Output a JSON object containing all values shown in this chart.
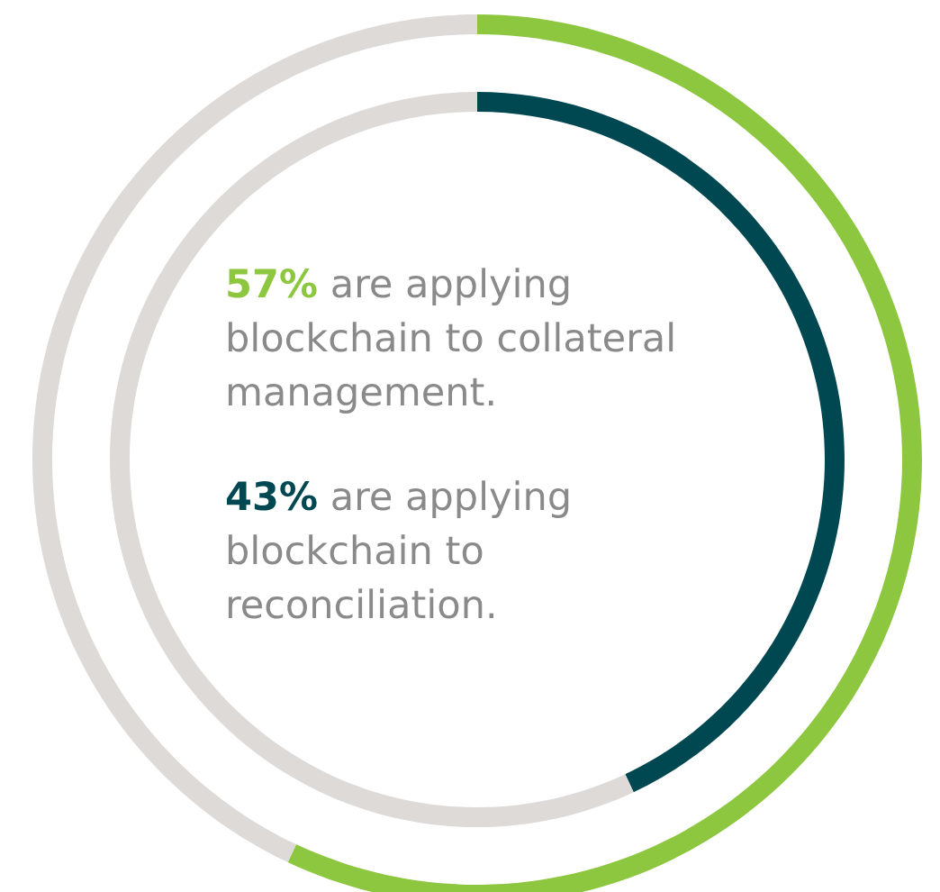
{
  "chart_data": {
    "type": "donut",
    "categories": [
      null,
      null
    ],
    "series": [
      {
        "values": [
          43,
          57
        ],
        "colors": [
          "#004851",
          "#dddad8"
        ]
      },
      {
        "values": [
          57,
          43
        ],
        "colors": [
          "#8dc63f",
          "#dddad8"
        ]
      }
    ],
    "annotations": [
      "57% are applying\nblockchain to collateral\nmanagement.",
      "43% are applying\nblockchain to\nreconciliation."
    ]
  }
}
